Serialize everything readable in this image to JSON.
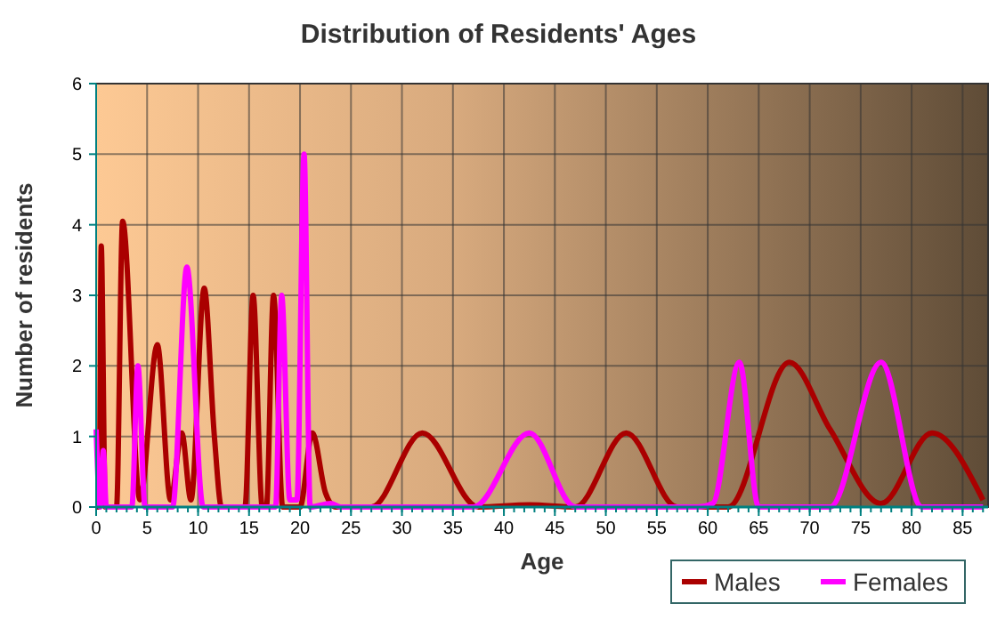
{
  "chart_data": {
    "type": "line",
    "title": "Distribution of Residents' Ages",
    "xlabel": "Age",
    "ylabel": "Number of residents",
    "xlim": [
      0,
      87.5
    ],
    "xticks": [
      0,
      5,
      10,
      15,
      20,
      25,
      30,
      35,
      40,
      45,
      50,
      55,
      60,
      65,
      70,
      75,
      80,
      85
    ],
    "ylim": [
      0,
      6
    ],
    "yticks": [
      0,
      1,
      2,
      3,
      4,
      5,
      6
    ],
    "grid": true,
    "legend": "bottom",
    "series": [
      {
        "name": "Males",
        "color": "#aa0000",
        "x": [
          0,
          0.3,
          0.5,
          0.9,
          2,
          2.6,
          4.3,
          6,
          7.3,
          8.4,
          9.3,
          10.6,
          11.6,
          12.3,
          14.6,
          15.4,
          16.3,
          16.7,
          17.4,
          18.3,
          20,
          21.2,
          22.5,
          23.5,
          27,
          32,
          37.5,
          42.5,
          47,
          52,
          57,
          62,
          68,
          72,
          77,
          82,
          87
        ],
        "values": [
          0,
          0,
          3.7,
          0,
          0,
          4.05,
          0.1,
          2.3,
          0.1,
          1.05,
          0.1,
          3.1,
          1,
          0,
          0,
          3,
          0,
          0,
          3,
          0,
          0,
          1.05,
          0.2,
          0,
          0,
          1.05,
          0,
          0.03,
          0,
          1.05,
          0,
          0,
          2.05,
          1.1,
          0.05,
          1.05,
          0.1
        ]
      },
      {
        "name": "Females",
        "color": "#ff00ff",
        "x": [
          0,
          0.4,
          0.7,
          1,
          3.5,
          4.1,
          4.8,
          7.5,
          8.9,
          10.5,
          17,
          17.6,
          18.2,
          19,
          19.7,
          20.4,
          21,
          23,
          24,
          37,
          42.5,
          47,
          59,
          60.5,
          63.1,
          65,
          67,
          72,
          77,
          81,
          87
        ],
        "values": [
          1.1,
          0,
          0.8,
          0,
          0,
          2,
          0,
          0,
          3.4,
          0,
          0,
          0,
          3,
          0.1,
          0.1,
          5,
          0,
          0.05,
          0,
          0,
          1.05,
          0,
          0,
          0.05,
          2.05,
          0,
          0,
          0,
          2.05,
          0,
          0
        ]
      }
    ]
  }
}
